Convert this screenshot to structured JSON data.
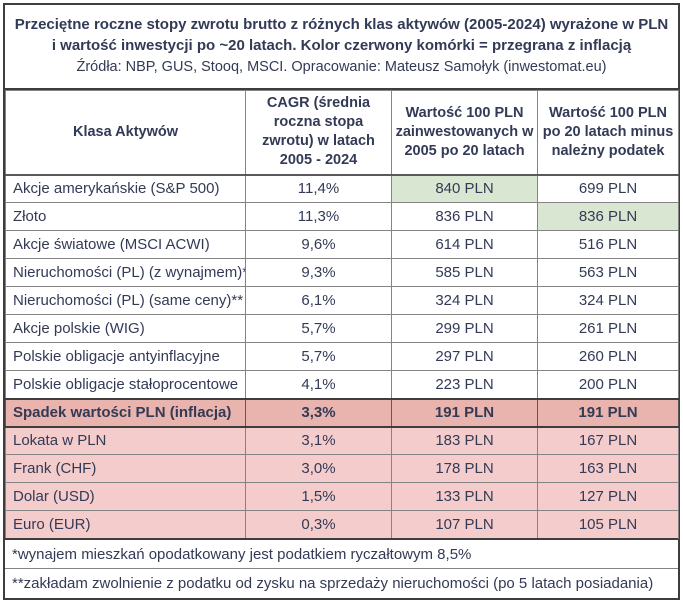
{
  "title": {
    "line1": "Przeciętne roczne stopy zwrotu brutto z różnych klas aktywów (2005-2024) wyrażone w PLN",
    "line2": "i wartość inwestycji po ~20 latach. Kolor czerwony komórki = przegrana z inflacją",
    "sources": "Źródła: NBP, GUS, Stooq, MSCI. Opracowanie: Mateusz Samołyk (inwestomat.eu)"
  },
  "table": {
    "columns": [
      "Klasa Aktywów",
      "CAGR (średnia roczna stopa zwrotu) w latach 2005 - 2024",
      "Wartość 100 PLN zainwestowanych w 2005 po 20 latach",
      "Wartość 100 PLN po 20 latach minus należny podatek"
    ],
    "rows": [
      {
        "asset": "Akcje amerykańskie (S&P 500)",
        "cagr": "11,4%",
        "gross": "840 PLN",
        "net": "699 PLN",
        "band": "none",
        "gross_highlight": true,
        "net_highlight": false
      },
      {
        "asset": "Złoto",
        "cagr": "11,3%",
        "gross": "836 PLN",
        "net": "836 PLN",
        "band": "none",
        "gross_highlight": false,
        "net_highlight": true
      },
      {
        "asset": "Akcje światowe (MSCI ACWI)",
        "cagr": "9,6%",
        "gross": "614 PLN",
        "net": "516 PLN",
        "band": "none",
        "gross_highlight": false,
        "net_highlight": false
      },
      {
        "asset": "Nieruchomości (PL) (z wynajmem)*",
        "cagr": "9,3%",
        "gross": "585 PLN",
        "net": "563 PLN",
        "band": "none",
        "gross_highlight": false,
        "net_highlight": false
      },
      {
        "asset": "Nieruchomości (PL) (same ceny)**",
        "cagr": "6,1%",
        "gross": "324 PLN",
        "net": "324 PLN",
        "band": "none",
        "gross_highlight": false,
        "net_highlight": false
      },
      {
        "asset": "Akcje polskie (WIG)",
        "cagr": "5,7%",
        "gross": "299 PLN",
        "net": "261 PLN",
        "band": "none",
        "gross_highlight": false,
        "net_highlight": false
      },
      {
        "asset": "Polskie obligacje antyinflacyjne",
        "cagr": "5,7%",
        "gross": "297 PLN",
        "net": "260 PLN",
        "band": "none",
        "gross_highlight": false,
        "net_highlight": false
      },
      {
        "asset": "Polskie obligacje stałoprocentowe",
        "cagr": "4,1%",
        "gross": "223 PLN",
        "net": "200 PLN",
        "band": "none",
        "gross_highlight": false,
        "net_highlight": false
      },
      {
        "asset": "Spadek wartości PLN (inflacja)",
        "cagr": "3,3%",
        "gross": "191 PLN",
        "net": "191 PLN",
        "band": "red-dark",
        "gross_highlight": false,
        "net_highlight": false
      },
      {
        "asset": "Lokata w PLN",
        "cagr": "3,1%",
        "gross": "183 PLN",
        "net": "167 PLN",
        "band": "red-light",
        "gross_highlight": false,
        "net_highlight": false
      },
      {
        "asset": "Frank (CHF)",
        "cagr": "3,0%",
        "gross": "178 PLN",
        "net": "163 PLN",
        "band": "red-light",
        "gross_highlight": false,
        "net_highlight": false
      },
      {
        "asset": "Dolar (USD)",
        "cagr": "1,5%",
        "gross": "133 PLN",
        "net": "127 PLN",
        "band": "red-light",
        "gross_highlight": false,
        "net_highlight": false
      },
      {
        "asset": "Euro (EUR)",
        "cagr": "0,3%",
        "gross": "107 PLN",
        "net": "105 PLN",
        "band": "red-light",
        "gross_highlight": false,
        "net_highlight": false
      }
    ]
  },
  "footnotes": [
    "*wynajem mieszkań opodatkowany jest podatkiem ryczałtowym 8,5%",
    "**zakładam zwolnienie z podatku od zysku na sprzedaży nieruchomości (po 5 latach posiadania)"
  ],
  "colors": {
    "text": "#333a56",
    "green_cell": "#d9e7d2",
    "red_light_row": "#f4cccc",
    "red_dark_row": "#e8b4ad",
    "border_inner": "#848484",
    "border_outer": "#3d3d3d"
  },
  "chart_data": {
    "type": "table",
    "title": "Przeciętne roczne stopy zwrotu brutto z różnych klas aktywów (2005-2024) wyrażone w PLN i wartość inwestycji po ~20 latach. Kolor czerwony komórki = przegrana z inflacją",
    "source_note": "Źródła: NBP, GUS, Stooq, MSCI. Opracowanie: Mateusz Samołyk (inwestomat.eu)",
    "columns": [
      "Klasa Aktywów",
      "CAGR (średnia roczna stopa zwrotu) w latach 2005 - 2024",
      "Wartość 100 PLN zainwestowanych w 2005 po 20 latach",
      "Wartość 100 PLN po 20 latach minus należny podatek"
    ],
    "rows": [
      [
        "Akcje amerykańskie (S&P 500)",
        "11,4%",
        "840 PLN",
        "699 PLN"
      ],
      [
        "Złoto",
        "11,3%",
        "836 PLN",
        "836 PLN"
      ],
      [
        "Akcje światowe (MSCI ACWI)",
        "9,6%",
        "614 PLN",
        "516 PLN"
      ],
      [
        "Nieruchomości (PL) (z wynajmem)*",
        "9,3%",
        "585 PLN",
        "563 PLN"
      ],
      [
        "Nieruchomości (PL) (same ceny)**",
        "6,1%",
        "324 PLN",
        "324 PLN"
      ],
      [
        "Akcje polskie (WIG)",
        "5,7%",
        "299 PLN",
        "261 PLN"
      ],
      [
        "Polskie obligacje antyinflacyjne",
        "5,7%",
        "297 PLN",
        "260 PLN"
      ],
      [
        "Polskie obligacje stałoprocentowe",
        "4,1%",
        "223 PLN",
        "200 PLN"
      ],
      [
        "Spadek wartości PLN (inflacja)",
        "3,3%",
        "191 PLN",
        "191 PLN"
      ],
      [
        "Lokata w PLN",
        "3,1%",
        "183 PLN",
        "167 PLN"
      ],
      [
        "Frank (CHF)",
        "3,0%",
        "178 PLN",
        "163 PLN"
      ],
      [
        "Dolar (USD)",
        "1,5%",
        "133 PLN",
        "127 PLN"
      ],
      [
        "Euro (EUR)",
        "0,3%",
        "107 PLN",
        "105 PLN"
      ]
    ],
    "highlight_green_cells": [
      [
        0,
        2
      ],
      [
        1,
        3
      ]
    ],
    "highlight_red_rows": [
      8,
      9,
      10,
      11,
      12
    ],
    "bold_red_row_index": 8,
    "footnotes": [
      "*wynajem mieszkań opodatkowany jest podatkiem ryczałtowym 8,5%",
      "**zakładam zwolnienie z podatku od zysku na sprzedaży nieruchomości (po 5 latach posiadania)"
    ]
  }
}
